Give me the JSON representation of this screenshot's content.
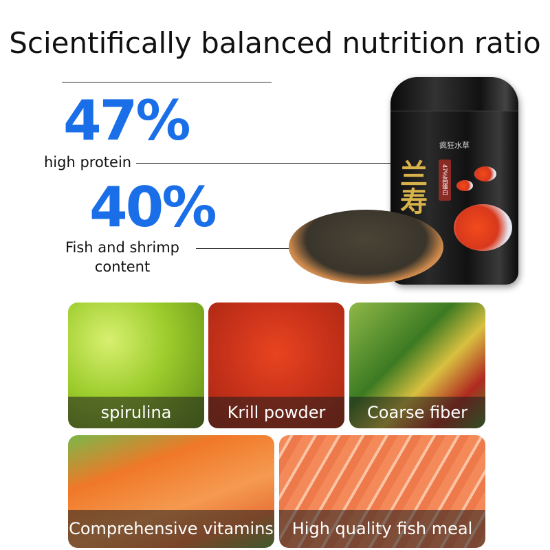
{
  "title": "Scientifically balanced nutrition ratio",
  "stats": [
    {
      "value": "47%",
      "label": "high protein"
    },
    {
      "value": "40%",
      "label": "Fish and shrimp content"
    }
  ],
  "jar": {
    "brand": "疯狂水草",
    "badge": "47%高蛋白",
    "name": "兰寿"
  },
  "colors": {
    "accent": "#1a6fe8"
  },
  "ingredients": [
    {
      "label": "spirulina"
    },
    {
      "label": "Krill powder"
    },
    {
      "label": "Coarse fiber"
    },
    {
      "label": "Comprehensive vitamins"
    },
    {
      "label": "High quality fish meal"
    }
  ]
}
